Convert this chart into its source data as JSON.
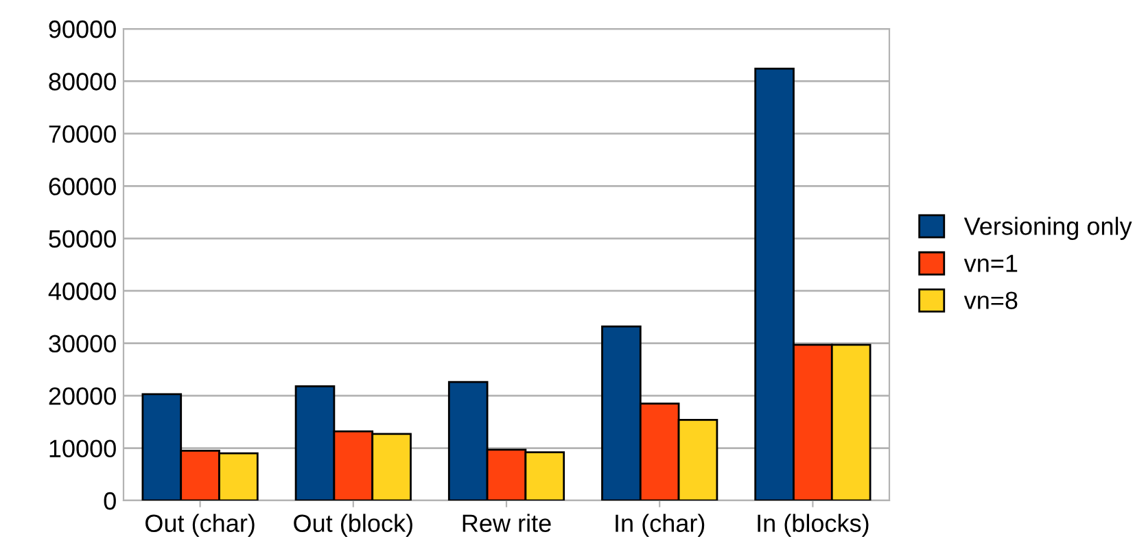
{
  "chart_data": {
    "type": "bar",
    "categories": [
      "Out (char)",
      "Out (block)",
      "Rew rite",
      "In (char)",
      "In (blocks)"
    ],
    "series": [
      {
        "name": "Versioning only",
        "color": "#004586",
        "values": [
          20300,
          21800,
          22600,
          33200,
          82400
        ]
      },
      {
        "name": "vn=1",
        "color": "#ff420e",
        "values": [
          9500,
          13200,
          9700,
          18500,
          29700
        ]
      },
      {
        "name": "vn=8",
        "color": "#ffd320",
        "values": [
          9000,
          12700,
          9200,
          15400,
          29700
        ]
      }
    ],
    "ylim": [
      0,
      90000
    ],
    "yticks": [
      0,
      10000,
      20000,
      30000,
      40000,
      50000,
      60000,
      70000,
      80000,
      90000
    ],
    "grid": "y",
    "legend": "right"
  }
}
